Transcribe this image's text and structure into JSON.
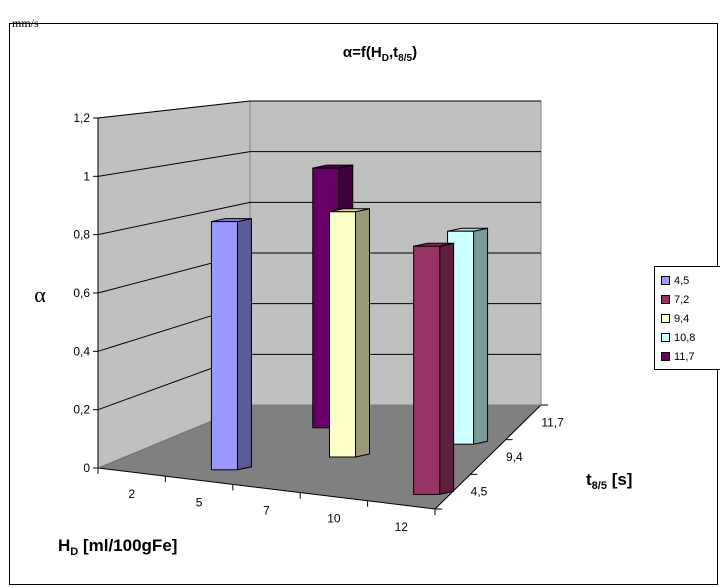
{
  "page_header_fragment": "mm/s",
  "chart_data": {
    "type": "bar",
    "title_parts": {
      "symbol": "α",
      "eq": "=f(H",
      "sub1": "D",
      "comma": ",t",
      "sub2": "8/5",
      "close": ")"
    },
    "ylabel": "α",
    "ylim": [
      0,
      1.2
    ],
    "yticks": [
      "0",
      "0,2",
      "0,4",
      "0,6",
      "0,8",
      "1",
      "1,2"
    ],
    "xlabel": {
      "main": "H",
      "sub": "D",
      "rest": "  [ml/100gFe]"
    },
    "x_categories": [
      "2",
      "5",
      "7",
      "10",
      "12"
    ],
    "zlabel": {
      "main": "t",
      "sub": "8/5",
      "rest": "  [s]"
    },
    "z_categories": [
      "4,5",
      "9,4",
      "11,7"
    ],
    "series": [
      {
        "name": "4,5",
        "color": "#9999ff",
        "value": 0.87,
        "x_index": 1,
        "z_index": 0
      },
      {
        "name": "7,2",
        "color": "#993366",
        "value": 0.87,
        "x_index": 4,
        "z_index": 0
      },
      {
        "name": "9,4",
        "color": "#ffffcc",
        "value": 0.9,
        "x_index": 2,
        "z_index": 1
      },
      {
        "name": "10,8",
        "color": "#ccffff",
        "value": 0.82,
        "x_index": 3,
        "z_index": 2
      },
      {
        "name": "11,7",
        "color": "#660066",
        "value": 1.0,
        "x_index": 1,
        "z_index": 2
      }
    ],
    "legend_position": "right",
    "grid": true
  }
}
